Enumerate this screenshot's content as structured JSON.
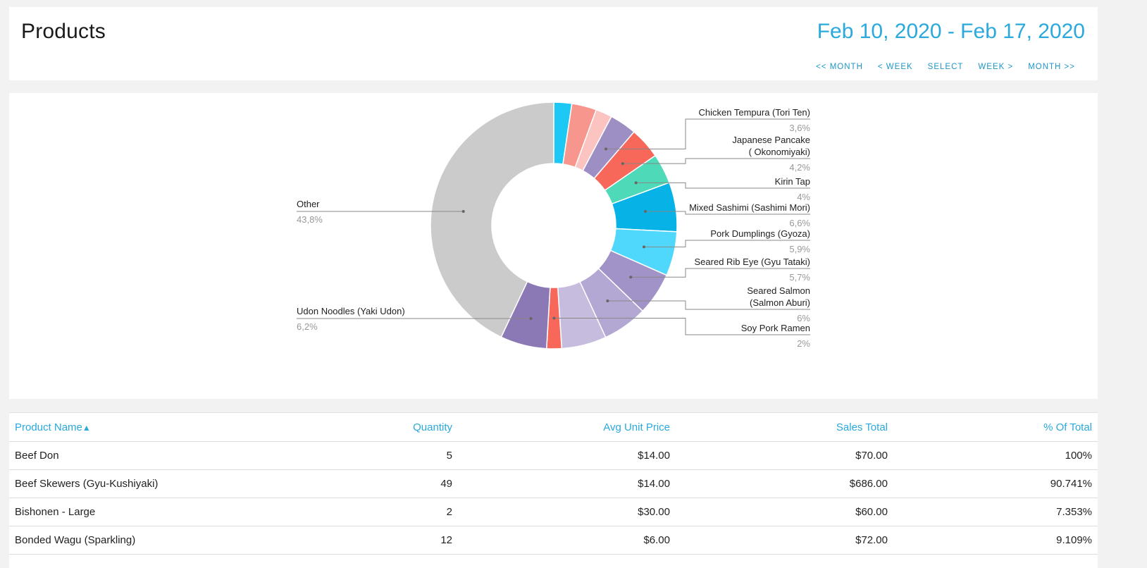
{
  "header": {
    "title": "Products",
    "date_range": "Feb 10, 2020 - Feb 17, 2020",
    "nav": [
      "<< MONTH",
      "< WEEK",
      "SELECT",
      "WEEK >",
      "MONTH >>"
    ]
  },
  "chart_data": {
    "type": "pie",
    "donut": true,
    "title": "",
    "slices": [
      {
        "label": "",
        "percent": 2.4,
        "color": "#1ec8f5"
      },
      {
        "label": "",
        "percent": 3.3,
        "color": "#f7968c"
      },
      {
        "label": "",
        "percent": 2.2,
        "color": "#fbc4c1"
      },
      {
        "label": "Chicken Tempura (Tori Ten)",
        "percent_text": "3,6%",
        "percent": 3.6,
        "color": "#9d8fc4"
      },
      {
        "label": "Japanese Pancake ( Okonomiyaki)",
        "percent_text": "4,2%",
        "percent": 4.2,
        "color": "#f7675a"
      },
      {
        "label": "Kirin Tap",
        "percent_text": "4%",
        "percent": 4.0,
        "color": "#4ed9b8"
      },
      {
        "label": "Mixed Sashimi (Sashimi Mori)",
        "percent_text": "6,6%",
        "percent": 6.6,
        "color": "#06b2e6"
      },
      {
        "label": "Pork Dumplings (Gyoza)",
        "percent_text": "5,9%",
        "percent": 5.9,
        "color": "#4fd8fb"
      },
      {
        "label": "Seared Rib Eye (Gyu Tataki)",
        "percent_text": "5,7%",
        "percent": 5.7,
        "color": "#a193c8"
      },
      {
        "label": "Seared Salmon (Salmon Aburi)",
        "percent_text": "6%",
        "percent": 6.0,
        "color": "#b3a7d3"
      },
      {
        "label": "",
        "percent": 6.0,
        "color": "#c6bcde"
      },
      {
        "label": "Soy Pork Ramen",
        "percent_text": "2%",
        "percent": 2.0,
        "color": "#f7675a"
      },
      {
        "label": "Udon Noodles (Yaki Udon)",
        "percent_text": "6,2%",
        "percent": 6.2,
        "color": "#8b79b5"
      },
      {
        "label": "Other",
        "percent_text": "43,8%",
        "percent": 43.8,
        "color": "#cbcbcb"
      }
    ]
  },
  "table": {
    "columns": [
      "Product Name",
      "Quantity",
      "Avg Unit Price",
      "Sales Total",
      "% Of Total"
    ],
    "sort_indicator": "▲",
    "rows": [
      [
        "Beef Don",
        "5",
        "$14.00",
        "$70.00",
        "100%"
      ],
      [
        "Beef Skewers (Gyu-Kushiyaki)",
        "49",
        "$14.00",
        "$686.00",
        "90.741%"
      ],
      [
        "Bishonen - Large",
        "2",
        "$30.00",
        "$60.00",
        "7.353%"
      ],
      [
        "Bonded Wagu (Sparkling)",
        "12",
        "$6.00",
        "$72.00",
        "9.109%"
      ]
    ]
  }
}
